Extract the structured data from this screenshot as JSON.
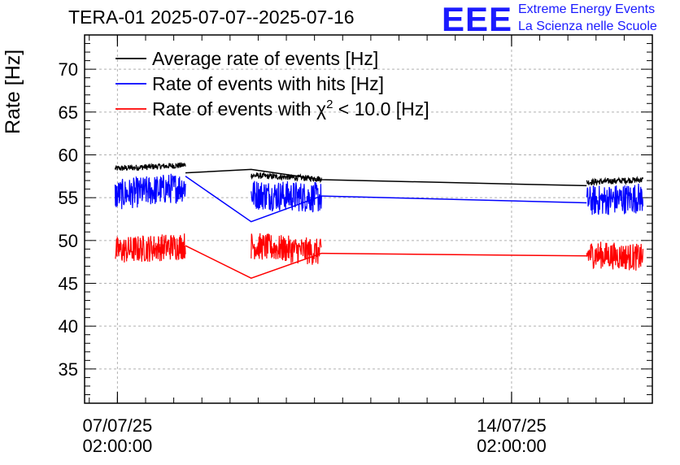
{
  "chart_data": {
    "type": "line",
    "title": "TERA-01 2025-07-07--2025-07-16",
    "ylabel": "Rate [Hz]",
    "xlabel": "",
    "ylim": [
      31,
      74
    ],
    "xlim": [
      "2025-07-06 12:00",
      "2025-07-16 14:00"
    ],
    "yticks": [
      35,
      40,
      45,
      50,
      55,
      60,
      65,
      70
    ],
    "xticks": [
      {
        "x": "2025-07-07 02:00",
        "line1": "07/07/25",
        "line2": "02:00:00"
      },
      {
        "x": "2025-07-14 02:00",
        "line1": "14/07/25",
        "line2": "02:00:00"
      }
    ],
    "grid": true,
    "legend_position": "top-left",
    "series": [
      {
        "name": "Average rate of events [Hz]",
        "color": "#000000",
        "noise": 0.35,
        "segments": [
          {
            "from": "2025-07-07 01:00",
            "to": "2025-07-08 07:00",
            "y_start": 58.4,
            "y_end": 58.8
          },
          {
            "from": "2025-07-09 11:00",
            "to": "2025-07-10 17:00",
            "y_start": 57.6,
            "y_end": 57.2
          },
          {
            "from": "2025-07-15 10:00",
            "to": "2025-07-16 10:00",
            "y_start": 56.8,
            "y_end": 57.1
          }
        ]
      },
      {
        "name": "Rate of events with hits [Hz]",
        "color": "#0000ff",
        "noise": 1.8,
        "segments": [
          {
            "from": "2025-07-07 01:00",
            "to": "2025-07-08 07:00",
            "y_start": 55.3,
            "y_end": 56.3
          },
          {
            "from": "2025-07-09 11:00",
            "to": "2025-07-10 17:00",
            "y_start": 55.4,
            "y_end": 55.0
          },
          {
            "from": "2025-07-15 10:00",
            "to": "2025-07-16 10:00",
            "y_start": 54.6,
            "y_end": 55.0
          }
        ]
      },
      {
        "name": "Rate of events with χ² < 10.0 [Hz]",
        "color": "#ff0000",
        "noise": 1.6,
        "segments": [
          {
            "from": "2025-07-07 01:00",
            "to": "2025-07-08 07:00",
            "y_start": 48.8,
            "y_end": 49.4
          },
          {
            "from": "2025-07-09 11:00",
            "to": "2025-07-10 17:00",
            "y_start": 49.4,
            "y_end": 48.6
          },
          {
            "from": "2025-07-15 10:00",
            "to": "2025-07-16 10:00",
            "y_start": 48.4,
            "y_end": 48.0
          }
        ]
      }
    ],
    "connectors": [
      {
        "color": "#000000",
        "points": [
          [
            "2025-07-08 07:00",
            57.9
          ],
          [
            "2025-07-09 11:00",
            58.3
          ],
          [
            "2025-07-10 17:00",
            57.1
          ],
          [
            "2025-07-15 10:00",
            56.4
          ]
        ]
      },
      {
        "color": "#0000ff",
        "points": [
          [
            "2025-07-08 07:00",
            57.5
          ],
          [
            "2025-07-09 11:00",
            52.2
          ],
          [
            "2025-07-10 17:00",
            55.2
          ],
          [
            "2025-07-15 10:00",
            54.4
          ]
        ]
      },
      {
        "color": "#ff0000",
        "points": [
          [
            "2025-07-08 07:00",
            49.4
          ],
          [
            "2025-07-09 11:00",
            45.6
          ],
          [
            "2025-07-10 17:00",
            48.5
          ],
          [
            "2025-07-15 10:00",
            48.2
          ]
        ]
      }
    ]
  },
  "logo": {
    "text": "EEE",
    "line1": "Extreme Energy Events",
    "line2": "La Scienza nelle Scuole",
    "color": "#1a1aff"
  }
}
